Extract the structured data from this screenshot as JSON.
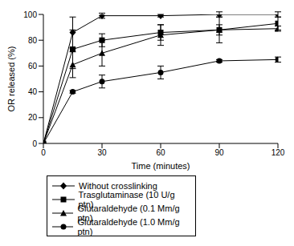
{
  "chart_data": {
    "type": "line",
    "x_label": "Time (minutes)",
    "y_label": "OR released (%)",
    "x": [
      0,
      15,
      30,
      60,
      90,
      120
    ],
    "xlim": [
      0,
      120
    ],
    "xticks": [
      0,
      30,
      60,
      90,
      120
    ],
    "ylim": [
      0,
      100
    ],
    "yticks": [
      0,
      20,
      40,
      60,
      80,
      100
    ],
    "grid": false,
    "legend": "bottom",
    "series": [
      {
        "name": "Without crosslinking",
        "color": "#000000",
        "marker": "diamond",
        "line_style": "solid",
        "values": [
          0,
          86,
          99,
          99,
          100,
          100
        ],
        "errors": [
          0,
          12,
          2,
          1,
          2,
          2
        ]
      },
      {
        "name": "Trasglutaminase (10 U/g ptn)",
        "color": "#000000",
        "marker": "square",
        "line_style": "solid",
        "values": [
          0,
          73,
          80,
          86,
          88,
          93
        ],
        "errors": [
          0,
          15,
          5,
          6,
          10,
          5
        ]
      },
      {
        "name": "Glutaraldehyde (0.1 Mm/g ptn)",
        "color": "#000000",
        "marker": "triangle",
        "line_style": "solid",
        "values": [
          0,
          61,
          70,
          84,
          88,
          89
        ],
        "errors": [
          0,
          10,
          10,
          8,
          4,
          2
        ]
      },
      {
        "name": "Glutaraldehyde (1.0 Mm/g ptn)",
        "color": "#000000",
        "marker": "circle",
        "line_style": "solid",
        "values": [
          0,
          40,
          48,
          55,
          64,
          65
        ],
        "errors": [
          0,
          1,
          5,
          5,
          1,
          2
        ]
      }
    ]
  }
}
